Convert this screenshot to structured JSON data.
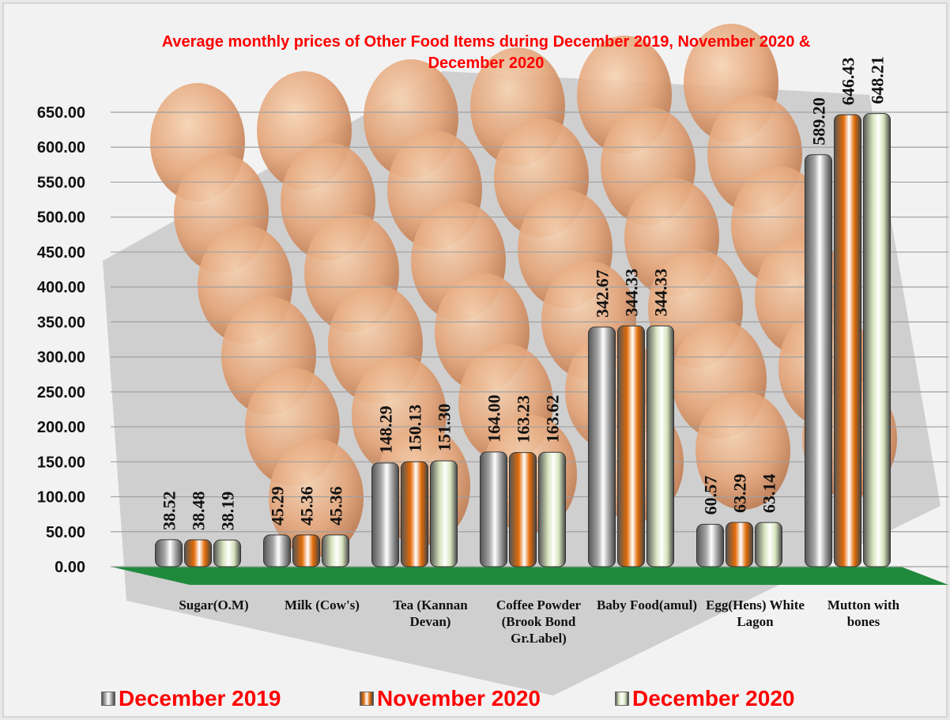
{
  "chart_data": {
    "type": "bar",
    "title": "Average monthly prices of Other Food Items during  December  2019, November 2020 & December 2020",
    "categories": [
      "Sugar(O.M)",
      "Milk (Cow's)",
      "Tea (Kannan Devan)",
      "Coffee Powder (Brook Bond Gr.Label)",
      "Baby Food(amul)",
      "Egg(Hens) White Lagon",
      "Mutton with bones"
    ],
    "series": [
      {
        "name": "December 2019",
        "color": "#a6a6a6",
        "values": [
          38.52,
          45.29,
          148.29,
          164.0,
          342.67,
          60.57,
          589.2
        ],
        "value_labels": [
          "38.52",
          "45.29",
          "148.29",
          "164.00",
          "342.67",
          "60.57",
          "589.20"
        ]
      },
      {
        "name": "November 2020",
        "color": "#e36c09",
        "values": [
          38.48,
          45.36,
          150.13,
          163.23,
          344.33,
          63.29,
          646.43
        ],
        "value_labels": [
          "38.48",
          "45.36",
          "150.13",
          "163.23",
          "344.33",
          "63.29",
          "646.43"
        ]
      },
      {
        "name": "December 2020",
        "color": "#d7e4bd",
        "values": [
          38.19,
          45.36,
          151.3,
          163.62,
          344.33,
          63.14,
          648.21
        ],
        "value_labels": [
          "38.19",
          "45.36",
          "151.30",
          "163.62",
          "344.33",
          "63.14",
          "648.21"
        ]
      }
    ],
    "ylim": [
      0,
      650
    ],
    "yticks": [
      {
        "value": 0,
        "label": "0.00"
      },
      {
        "value": 50,
        "label": "50.00"
      },
      {
        "value": 100,
        "label": "100.00"
      },
      {
        "value": 150,
        "label": "150.00"
      },
      {
        "value": 200,
        "label": "200.00"
      },
      {
        "value": 250,
        "label": "250.00"
      },
      {
        "value": 300,
        "label": "300.00"
      },
      {
        "value": 350,
        "label": "350.00"
      },
      {
        "value": 400,
        "label": "400.00"
      },
      {
        "value": 450,
        "label": "450.00"
      },
      {
        "value": 500,
        "label": "500.00"
      },
      {
        "value": 550,
        "label": "550.00"
      },
      {
        "value": 600,
        "label": "600.00"
      },
      {
        "value": 650,
        "label": "650.00"
      }
    ],
    "grid": true,
    "legend": "bottom"
  }
}
